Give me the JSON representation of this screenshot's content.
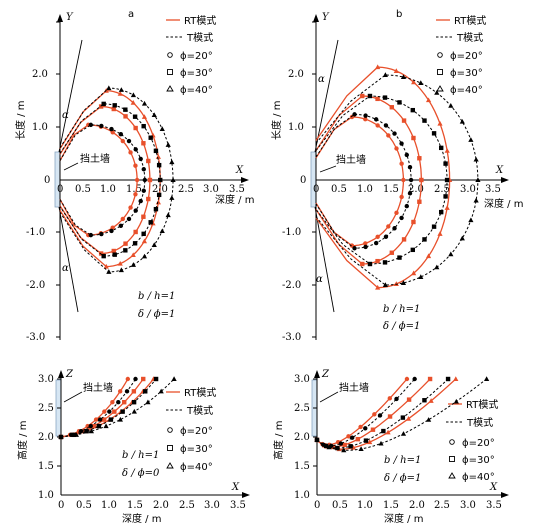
{
  "panels": [
    {
      "id": "a",
      "tag": "a",
      "x_axis": {
        "name": "X",
        "label": "深度 / m",
        "ticks": [
          "0",
          "0.5",
          "1.0",
          "1.5",
          "2.0",
          "2.5",
          "3.0",
          "3.5"
        ]
      },
      "y_axis": {
        "name": "Y",
        "label": "长度 / m",
        "ticks": [
          "-3.0",
          "-2.0",
          "-1.0",
          "0",
          "1.0",
          "2.0"
        ]
      },
      "wall_label": "挡土墙",
      "alpha": "α",
      "params": [
        "b / h=1",
        "δ / ϕ=1"
      ],
      "legend": [
        "RT模式",
        "T模式",
        "ϕ=20°",
        "ϕ=30°",
        "ϕ=40°"
      ]
    },
    {
      "id": "b",
      "tag": "b",
      "x_axis": {
        "name": "X",
        "label": "深度 / m",
        "ticks": [
          "0",
          "0.5",
          "1.0",
          "1.5",
          "2.0",
          "2.5",
          "3.0",
          "3.5"
        ]
      },
      "y_axis": {
        "name": "Y",
        "label": "长度 / m",
        "ticks": [
          "-3.0",
          "-2.0",
          "-1.0",
          "0",
          "1.0",
          "2.0"
        ]
      },
      "wall_label": "挡土墙",
      "alpha": "α",
      "params": [
        "b / h=1",
        "δ / ϕ=1"
      ],
      "legend": [
        "RT模式",
        "T模式",
        "ϕ=20°",
        "ϕ=30°",
        "ϕ=40°"
      ]
    },
    {
      "id": "c",
      "x_axis": {
        "name": "X",
        "label": "深度 / m",
        "ticks": [
          "0",
          "0.5",
          "1.0",
          "1.5",
          "2.0",
          "2.5",
          "3.0",
          "3.5"
        ]
      },
      "y_axis": {
        "name": "Z",
        "label": "高度 / m",
        "ticks": [
          "1.0",
          "1.5",
          "2.0",
          "2.5",
          "3.0"
        ]
      },
      "wall_label": "挡土墙",
      "params": [
        "b / h=1",
        "δ / ϕ=0"
      ],
      "legend": [
        "RT模式",
        "T模式",
        "ϕ=20°",
        "ϕ=30°",
        "ϕ=40°"
      ]
    },
    {
      "id": "d",
      "x_axis": {
        "name": "X",
        "label": "深度 / m",
        "ticks": [
          "0",
          "0.5",
          "1.0",
          "1.5",
          "2.0",
          "2.5",
          "3.0",
          "3.5"
        ]
      },
      "y_axis": {
        "name": "Z",
        "label": "高度 / m",
        "ticks": [
          "1.0",
          "1.5",
          "2.0",
          "2.5",
          "3.0"
        ]
      },
      "wall_label": "挡土墙",
      "params": [
        "b / h=1",
        "δ / ϕ=1"
      ],
      "legend": [
        "RT模式",
        "T模式",
        "ϕ=20°",
        "ϕ=30°",
        "ϕ=40°"
      ]
    }
  ],
  "colors": {
    "rt": "#e8502b",
    "t": "#000000",
    "wall": "#d6e6f3"
  },
  "chart_data": [
    {
      "type": "line",
      "panel": "a",
      "xlim": [
        0,
        3.5
      ],
      "ylim": [
        -3.0,
        2.0
      ],
      "series": [
        {
          "name": "RT模式",
          "phi": 20,
          "x_max": 1.5,
          "y_top": 1.05,
          "y_bottom": -1.05,
          "cx": 0.55
        },
        {
          "name": "RT模式",
          "phi": 30,
          "x_max": 1.75,
          "y_top": 1.4,
          "y_bottom": -1.4,
          "cx": 0.8
        },
        {
          "name": "RT模式",
          "phi": 40,
          "x_max": 1.95,
          "y_top": 1.7,
          "y_bottom": -1.65,
          "cx": 0.9
        },
        {
          "name": "T模式",
          "phi": 20,
          "x_max": 1.65,
          "y_top": 1.05,
          "y_bottom": -1.05,
          "cx": 0.6
        },
        {
          "name": "T模式",
          "phi": 30,
          "x_max": 1.95,
          "y_top": 1.45,
          "y_bottom": -1.45,
          "cx": 0.85
        },
        {
          "name": "T模式",
          "phi": 40,
          "x_max": 2.2,
          "y_top": 1.75,
          "y_bottom": -1.75,
          "cx": 0.95
        }
      ]
    },
    {
      "type": "line",
      "panel": "b",
      "xlim": [
        0,
        3.5
      ],
      "ylim": [
        -3.0,
        2.0
      ],
      "series": [
        {
          "name": "RT模式",
          "phi": 20,
          "x_max": 1.7,
          "y_top": 1.2,
          "y_bottom": -1.25,
          "cx": 0.7
        },
        {
          "name": "RT模式",
          "phi": 30,
          "x_max": 2.05,
          "y_top": 1.6,
          "y_bottom": -1.6,
          "cx": 0.9
        },
        {
          "name": "RT模式",
          "phi": 40,
          "x_max": 2.6,
          "y_top": 2.15,
          "y_bottom": -2.05,
          "cx": 1.2
        },
        {
          "name": "T模式",
          "phi": 20,
          "x_max": 1.85,
          "y_top": 1.25,
          "y_bottom": -1.3,
          "cx": 0.75
        },
        {
          "name": "T模式",
          "phi": 30,
          "x_max": 2.55,
          "y_top": 1.6,
          "y_bottom": -1.6,
          "cx": 1.05
        },
        {
          "name": "T模式",
          "phi": 40,
          "x_max": 3.15,
          "y_top": 2.0,
          "y_bottom": -2.0,
          "cx": 1.35
        }
      ]
    },
    {
      "type": "line",
      "panel": "c",
      "xlim": [
        0,
        3.5
      ],
      "ylim": [
        1.0,
        3.0
      ],
      "series": [
        {
          "name": "RT模式",
          "phi": 20,
          "x_end": 1.3,
          "z_start": 2.0,
          "x_min": 0,
          "z_min": 2.0
        },
        {
          "name": "RT模式",
          "phi": 30,
          "x_end": 1.6,
          "z_start": 2.0,
          "x_min": 0,
          "z_min": 2.0
        },
        {
          "name": "RT模式",
          "phi": 40,
          "x_end": 1.8,
          "z_start": 2.0,
          "x_min": 0,
          "z_min": 2.0
        },
        {
          "name": "T模式",
          "phi": 20,
          "x_end": 1.45,
          "z_start": 2.0,
          "x_min": 0,
          "z_min": 2.0
        },
        {
          "name": "T模式",
          "phi": 30,
          "x_end": 1.85,
          "z_start": 2.0,
          "x_min": 0,
          "z_min": 2.0
        },
        {
          "name": "T模式",
          "phi": 40,
          "x_end": 2.2,
          "z_start": 2.0,
          "x_min": 0,
          "z_min": 2.0
        }
      ]
    },
    {
      "type": "line",
      "panel": "d",
      "xlim": [
        0,
        3.5
      ],
      "ylim": [
        1.0,
        3.0
      ],
      "series": [
        {
          "name": "RT模式",
          "phi": 20,
          "x_end": 1.75,
          "z_start": 1.95,
          "x_min": 0.25,
          "z_min": 1.8
        },
        {
          "name": "RT模式",
          "phi": 30,
          "x_end": 2.2,
          "z_start": 1.95,
          "x_min": 0.35,
          "z_min": 1.7
        },
        {
          "name": "RT模式",
          "phi": 40,
          "x_end": 2.7,
          "z_start": 1.95,
          "x_min": 0.5,
          "z_min": 1.6
        },
        {
          "name": "T模式",
          "phi": 20,
          "x_end": 1.9,
          "z_start": 1.95,
          "x_min": 0.3,
          "z_min": 1.75
        },
        {
          "name": "T模式",
          "phi": 30,
          "x_end": 2.55,
          "z_start": 1.95,
          "x_min": 0.45,
          "z_min": 1.65
        },
        {
          "name": "T模式",
          "phi": 40,
          "x_end": 3.3,
          "z_start": 1.95,
          "x_min": 0.6,
          "z_min": 1.55
        }
      ]
    }
  ]
}
